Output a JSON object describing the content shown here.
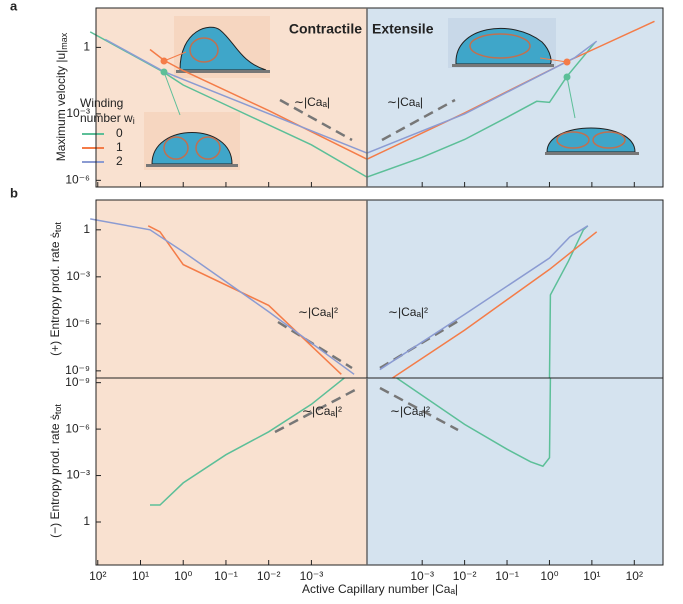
{
  "chart_data": {
    "type": "line",
    "panel_letters": [
      "a",
      "b"
    ],
    "region_labels": {
      "left": "Contractile",
      "left_color": "#f28a3b",
      "right": "Extensile",
      "right_color": "#2b86c0"
    },
    "x_axis": {
      "label": "Active Capillary number |Caₐ|",
      "left": {
        "xlim": [
          110,
          5e-05
        ],
        "xticks": [
          {
            "value": 100,
            "label": "10²"
          },
          {
            "value": 10,
            "label": "10¹"
          },
          {
            "value": 1,
            "label": "10⁰"
          },
          {
            "value": 0.1,
            "label": "10⁻¹"
          },
          {
            "value": 0.01,
            "label": "10⁻²"
          },
          {
            "value": 0.001,
            "label": "10⁻³"
          }
        ]
      },
      "right": {
        "xlim": [
          5e-05,
          475
        ],
        "xticks": [
          {
            "value": 0.001,
            "label": "10⁻³"
          },
          {
            "value": 0.01,
            "label": "10⁻²"
          },
          {
            "value": 0.1,
            "label": "10⁻¹"
          },
          {
            "value": 1,
            "label": "10⁰"
          },
          {
            "value": 10,
            "label": "10¹"
          },
          {
            "value": 100,
            "label": "10²"
          }
        ]
      }
    },
    "legend": {
      "title": "Winding",
      "title2": "number w",
      "title2_sub": "i"
    },
    "panels": [
      {
        "ylabel": "Maximum velocity |u|",
        "ylabel_sub": "max",
        "log_y": true,
        "ylim": [
          5e-07,
          60
        ],
        "yticks": [
          1,
          {
            "value": 0.001,
            "label": "10⁻³"
          },
          {
            "value": 1e-06,
            "label": "10⁻⁶"
          }
        ],
        "annotations": [
          "∼|Caₐ|",
          "∼|Caₐ|"
        ],
        "series": [
          {
            "name": "0",
            "color": "#5cbf98",
            "contractile": {
              "x": [
                150,
                3,
                1,
                0.1,
                0.001,
                5e-05
              ],
              "values": [
                5,
                0.08,
                0.02,
                0.0025,
                4e-05,
                1.4e-06
              ]
            },
            "extensile": {
              "x": [
                5e-05,
                0.001,
                0.01,
                0.1,
                0.5,
                1,
                2.6,
                12
              ],
              "values": [
                1.4e-06,
                1.1e-05,
                7e-05,
                0.0007,
                0.0037,
                0.0033,
                0.05,
                1.7
              ]
            }
          },
          {
            "name": "1",
            "color": "#f47c48",
            "contractile": {
              "x": [
                6,
                2.8,
                1,
                0.01,
                5e-05
              ],
              "values": [
                0.8,
                0.26,
                0.09,
                0.0014,
                9e-06
              ]
            },
            "extensile": {
              "x": [
                5e-05,
                0.01,
                2.6,
                300
              ],
              "values": [
                9e-06,
                0.0011,
                0.23,
                15
              ]
            }
          },
          {
            "name": "2",
            "color": "#8b9bd2",
            "contractile": {
              "x": [
                67,
                2.8,
                1,
                5e-05
              ],
              "values": [
                2.3,
                0.08,
                0.036,
                1.7e-05
              ]
            },
            "extensile": {
              "x": [
                5e-05,
                0.01,
                4,
                13
              ],
              "values": [
                1.7e-05,
                0.001,
                0.35,
                1.9
              ]
            }
          }
        ]
      },
      {
        "ylabel": "(+) Entropy prod. rate ṡ",
        "ylabel_sub": "tot",
        "log_y": true,
        "ylim": [
          3.5e-10,
          80
        ],
        "yticks": [
          1,
          {
            "value": 0.001,
            "label": "10⁻³"
          },
          {
            "value": 1e-06,
            "label": "10⁻⁶"
          },
          {
            "value": 1e-09,
            "label": "10⁻⁹"
          }
        ],
        "annotations": [
          "∼|Caₐ|²",
          "∼|Caₐ|²"
        ],
        "series": [
          {
            "name": "0",
            "color": "#5cbf98",
            "contractile": {
              "x": [],
              "values": []
            },
            "extensile": {
              "x": [
                1,
                1.05,
                2.8,
                6.3,
                8
              ],
              "values": [
                3.5e-10,
                7e-05,
                0.01,
                1,
                1.8
              ]
            }
          },
          {
            "name": "1",
            "color": "#f47c48",
            "contractile": {
              "x": [
                6.6,
                3.5,
                1,
                0.01,
                0.0002
              ],
              "values": [
                1.8,
                0.75,
                0.006,
                1.5e-05,
                6e-10
              ]
            },
            "extensile": {
              "x": [
                0.0002,
                0.01,
                1,
                13
              ],
              "values": [
                3.5e-10,
                4e-07,
                0.003,
                0.75
              ]
            }
          },
          {
            "name": "2",
            "color": "#8b9bd2",
            "contractile": {
              "x": [
                150,
                6,
                1,
                0.01,
                0.0001
              ],
              "values": [
                5,
                1,
                0.04,
                6e-06,
                6e-10
              ]
            },
            "extensile": {
              "x": [
                0.0001,
                0.01,
                1,
                3,
                8
              ],
              "values": [
                1.2e-09,
                4e-06,
                0.016,
                0.35,
                1.8
              ]
            }
          }
        ]
      },
      {
        "ylabel": "(−) Entropy prod. rate ṡ",
        "ylabel_sub": "tot",
        "log_y": true,
        "ylim": [
          600,
          5e-10
        ],
        "yticks": [
          {
            "value": 1e-09,
            "label": "10⁻⁹"
          },
          {
            "value": 1e-06,
            "label": "10⁻⁶"
          },
          {
            "value": 0.001,
            "label": "10⁻³"
          },
          1
        ],
        "annotations": [
          "∼|Caₐ|²",
          "∼|Caₐ|²"
        ],
        "series": [
          {
            "name": "0",
            "color": "#5cbf98",
            "contractile": {
              "x": [
                6,
                3.5,
                1,
                0.1,
                0.01,
                0.001,
                0.00017
              ],
              "values": [
                0.08,
                0.08,
                0.003,
                4.5e-05,
                1.5e-06,
                2.5e-08,
                5e-10
              ]
            },
            "extensile": {
              "x": [
                0.00025,
                0.01,
                0.1,
                0.36,
                0.7,
                1,
                1.05
              ],
              "values": [
                5e-10,
                5e-07,
                2e-05,
                0.00013,
                0.00025,
                7e-05,
                5e-10
              ]
            }
          }
        ]
      }
    ]
  }
}
